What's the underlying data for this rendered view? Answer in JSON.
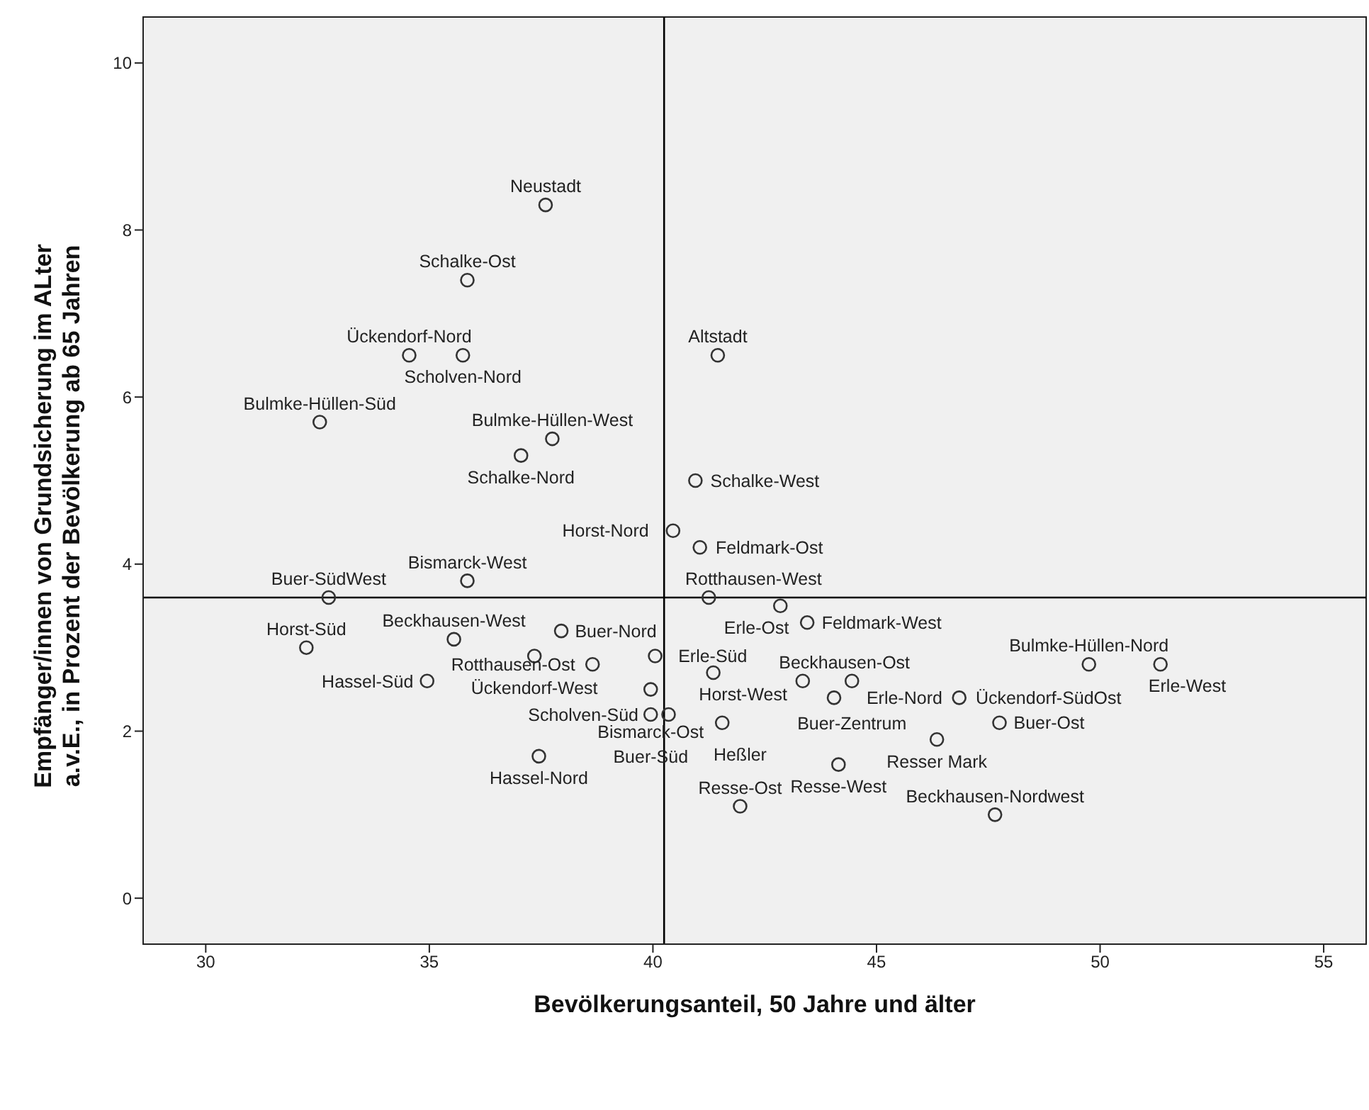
{
  "chart_data": {
    "type": "scatter",
    "xlabel": "Bevölkerungsanteil, 50 Jahre und älter",
    "ylabel": "Empfänger/innen von Grundsicherung im ALter a.v.E., in Prozent der Bevölkerung ab 65 Jahren",
    "x": [
      37.6,
      35.85,
      34.55,
      35.75,
      41.45,
      32.55,
      37.75,
      37.05,
      40.95,
      40.45,
      41.05,
      35.85,
      32.75,
      41.25,
      42.85,
      43.45,
      32.25,
      35.55,
      37.95,
      37.35,
      38.65,
      40.05,
      34.95,
      41.35,
      43.35,
      44.45,
      39.95,
      44.05,
      46.85,
      49.75,
      51.35,
      39.95,
      40.35,
      41.55,
      47.75,
      46.35,
      44.15,
      41.95,
      47.65,
      37.45
    ],
    "series": [
      {
        "color": "#333333",
        "values": [
          8.3,
          7.4,
          6.5,
          6.5,
          6.5,
          5.7,
          5.5,
          5.3,
          5.0,
          4.4,
          4.2,
          3.8,
          3.6,
          3.6,
          3.5,
          3.3,
          3.0,
          3.1,
          3.2,
          2.9,
          2.8,
          2.9,
          2.6,
          2.7,
          2.6,
          2.6,
          2.5,
          2.4,
          2.4,
          2.8,
          2.8,
          2.2,
          2.2,
          2.1,
          2.1,
          1.9,
          1.6,
          1.1,
          1.0,
          1.7
        ]
      }
    ],
    "annotations": [
      {
        "text": "Neustadt",
        "x": 37.6,
        "y": 8.3
      },
      {
        "text": "Schalke-Ost",
        "x": 35.85,
        "y": 7.4
      },
      {
        "text": "Ückendorf-Nord",
        "x": 34.55,
        "y": 6.5
      },
      {
        "text": "Scholven-Nord",
        "x": 35.75,
        "y": 6.5
      },
      {
        "text": "Altstadt",
        "x": 41.45,
        "y": 6.5
      },
      {
        "text": "Bulmke-Hüllen-Süd",
        "x": 32.55,
        "y": 5.7
      },
      {
        "text": "Bulmke-Hüllen-West",
        "x": 37.75,
        "y": 5.5
      },
      {
        "text": "Schalke-Nord",
        "x": 37.05,
        "y": 5.3
      },
      {
        "text": "Schalke-West",
        "x": 40.95,
        "y": 5.0
      },
      {
        "text": "Horst-Nord",
        "x": 40.45,
        "y": 4.4
      },
      {
        "text": "Feldmark-Ost",
        "x": 41.05,
        "y": 4.2
      },
      {
        "text": "Bismarck-West",
        "x": 35.85,
        "y": 3.8
      },
      {
        "text": "Buer-SüdWest",
        "x": 32.75,
        "y": 3.6
      },
      {
        "text": "Rotthausen-West",
        "x": 41.25,
        "y": 3.6
      },
      {
        "text": "Erle-Ost",
        "x": 42.85,
        "y": 3.5
      },
      {
        "text": "Feldmark-West",
        "x": 43.45,
        "y": 3.3
      },
      {
        "text": "Horst-Süd",
        "x": 32.25,
        "y": 3.0
      },
      {
        "text": "Beckhausen-West",
        "x": 35.55,
        "y": 3.1
      },
      {
        "text": "Buer-Nord",
        "x": 37.95,
        "y": 3.2
      },
      {
        "text": "Ückendorf-West",
        "x": 37.35,
        "y": 2.9
      },
      {
        "text": "Rotthausen-Ost",
        "x": 38.65,
        "y": 2.8
      },
      {
        "text": "Erle-Süd",
        "x": 40.05,
        "y": 2.9
      },
      {
        "text": "Hassel-Süd",
        "x": 34.95,
        "y": 2.6
      },
      {
        "text": "Horst-West",
        "x": 41.35,
        "y": 2.7
      },
      {
        "text": "Beckhausen-Ost",
        "x": 43.35,
        "y": 2.6
      },
      {
        "text": "Buer-Zentrum",
        "x": 44.45,
        "y": 2.6
      },
      {
        "text": "Bismarck-Ost",
        "x": 39.95,
        "y": 2.5
      },
      {
        "text": "Erle-Nord",
        "x": 44.05,
        "y": 2.4
      },
      {
        "text": "Ückendorf-SüdOst",
        "x": 46.85,
        "y": 2.4
      },
      {
        "text": "Bulmke-Hüllen-Nord",
        "x": 49.75,
        "y": 2.8
      },
      {
        "text": "Erle-West",
        "x": 51.35,
        "y": 2.8
      },
      {
        "text": "Buer-Süd",
        "x": 39.95,
        "y": 2.2
      },
      {
        "text": "Scholven-Süd",
        "x": 40.35,
        "y": 2.2
      },
      {
        "text": "Heßler",
        "x": 41.55,
        "y": 2.1
      },
      {
        "text": "Buer-Ost",
        "x": 47.75,
        "y": 2.1
      },
      {
        "text": "Resser Mark",
        "x": 46.35,
        "y": 1.9
      },
      {
        "text": "Resse-West",
        "x": 44.15,
        "y": 1.6
      },
      {
        "text": "Resse-Ost",
        "x": 41.95,
        "y": 1.1
      },
      {
        "text": "Beckhausen-Nordwest",
        "x": 47.65,
        "y": 1.0
      },
      {
        "text": "Hassel-Nord",
        "x": 37.45,
        "y": 1.7
      }
    ],
    "xlim": [
      28.6,
      55.95
    ],
    "xticks": [
      30,
      35,
      40,
      45,
      50,
      55
    ],
    "ylim": [
      -0.55,
      10.55
    ],
    "yticks": [
      0,
      2,
      4,
      6,
      8,
      10
    ],
    "ref_lines": [
      {
        "axis": "x",
        "value": 40.25,
        "color": "#000000"
      },
      {
        "axis": "y",
        "value": 3.6,
        "color": "#000000"
      }
    ],
    "marker": "circle"
  }
}
